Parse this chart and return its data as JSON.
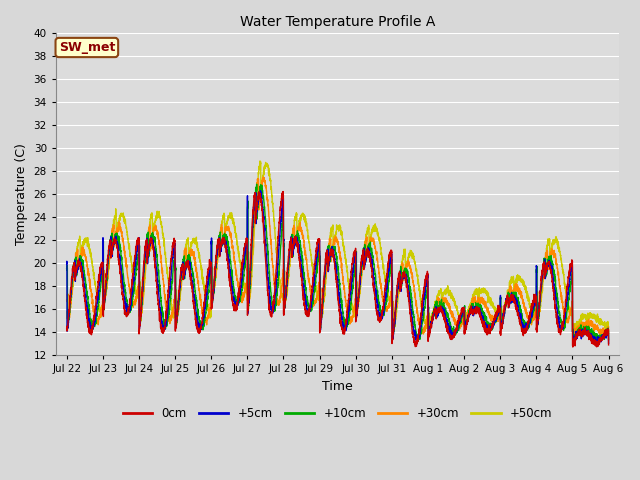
{
  "title": "Water Temperature Profile A",
  "xlabel": "Time",
  "ylabel": "Temperature (C)",
  "ylim": [
    12,
    40
  ],
  "yticks": [
    12,
    14,
    16,
    18,
    20,
    22,
    24,
    26,
    28,
    30,
    32,
    34,
    36,
    38,
    40
  ],
  "background_color": "#d8d8d8",
  "plot_bg_color": "#dcdcdc",
  "grid_color": "#ffffff",
  "annotation_text": "SW_met",
  "annotation_bg": "#ffffcc",
  "annotation_border": "#8B4513",
  "annotation_text_color": "#8B0000",
  "series_colors": [
    "#cc0000",
    "#0000cc",
    "#00aa00",
    "#ff8800",
    "#cccc00"
  ],
  "series_labels": [
    "0cm",
    "+5cm",
    "+10cm",
    "+30cm",
    "+50cm"
  ],
  "x_tick_labels": [
    "Jul 22",
    "Jul 23",
    "Jul 24",
    "Jul 25",
    "Jul 26",
    "Jul 27",
    "Jul 28",
    "Jul 29",
    "Jul 30",
    "Jul 31",
    "Aug 1",
    "Aug 2",
    "Aug 3",
    "Aug 4",
    "Aug 5",
    "Aug 6"
  ],
  "n_points": 4000,
  "figsize": [
    6.4,
    4.8
  ],
  "dpi": 100
}
